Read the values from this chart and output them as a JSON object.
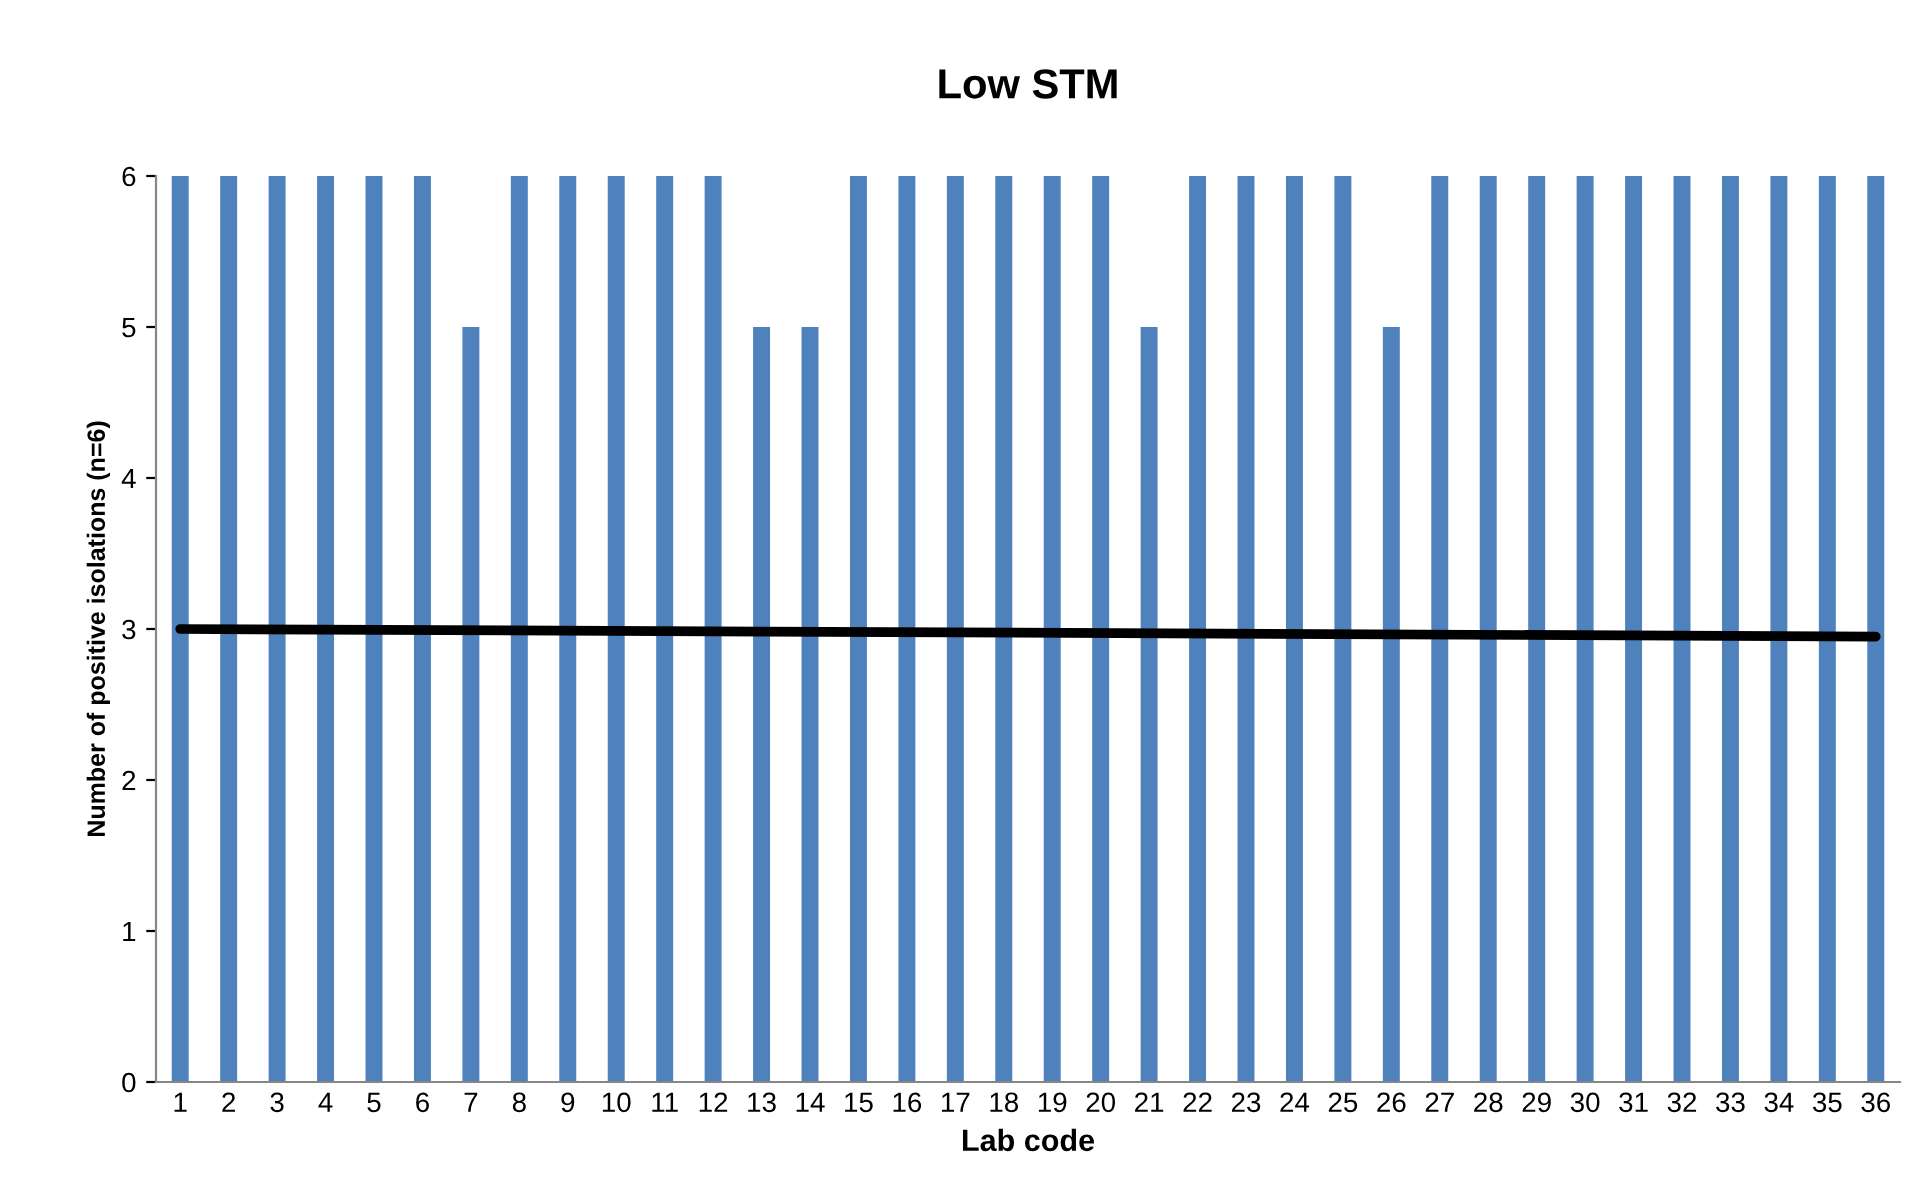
{
  "chart_data": {
    "type": "bar",
    "title": "Low STM",
    "xlabel": "Lab code",
    "ylabel": "Number of positive isolations (n=6)",
    "categories": [
      "1",
      "2",
      "3",
      "4",
      "5",
      "6",
      "7",
      "8",
      "9",
      "10",
      "11",
      "12",
      "13",
      "14",
      "15",
      "16",
      "17",
      "18",
      "19",
      "20",
      "21",
      "22",
      "23",
      "24",
      "25",
      "26",
      "27",
      "28",
      "29",
      "30",
      "31",
      "32",
      "33",
      "34",
      "35",
      "36"
    ],
    "series": [
      {
        "color": "#4f81bd",
        "values": [
          6,
          6,
          6,
          6,
          6,
          6,
          5,
          6,
          6,
          6,
          6,
          6,
          5,
          5,
          6,
          6,
          6,
          6,
          6,
          6,
          5,
          6,
          6,
          6,
          6,
          5,
          6,
          6,
          6,
          6,
          6,
          6,
          6,
          6,
          6,
          6
        ]
      },
      {
        "type": "line",
        "color": "#000000",
        "x": [
          "1",
          "36"
        ],
        "values": [
          3.0,
          2.95
        ]
      }
    ],
    "ylim": [
      0,
      6
    ],
    "yticks": [
      0,
      1,
      2,
      3,
      4,
      5,
      6
    ],
    "grid": false,
    "legend": false
  }
}
